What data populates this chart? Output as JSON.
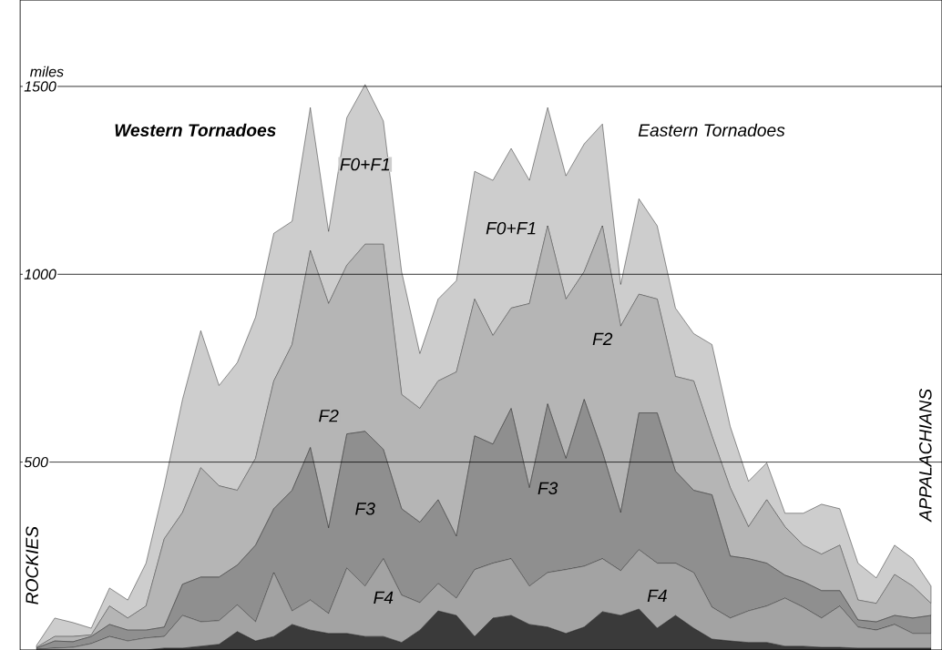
{
  "chart_data": {
    "type": "area",
    "stacked": true,
    "ylabel": "miles",
    "categories": [
      null,
      null,
      null,
      null,
      null,
      null,
      null,
      null,
      null,
      null,
      null,
      null,
      null,
      null,
      null,
      null,
      null,
      null,
      null,
      null,
      null,
      null,
      null,
      null,
      null,
      null,
      null,
      null,
      null,
      null,
      null,
      null,
      null,
      null,
      null,
      null,
      null,
      null,
      null,
      null,
      null,
      null,
      null,
      null,
      null,
      null,
      null,
      null,
      null,
      null
    ],
    "ylim": [
      0,
      1730
    ],
    "yticks": [
      500,
      1000,
      1500
    ],
    "grid": "y",
    "tick_labels": "y",
    "marker": "none",
    "line_style": "solid",
    "annotations": [
      "Western Tornadoes",
      "Eastern Tornadoes",
      "ROCKIES",
      "APPALACHIANS"
    ],
    "series": [
      {
        "color": "#3a3a3a",
        "values": [
          0,
          0,
          0,
          0,
          0,
          0,
          0,
          5,
          5,
          10,
          15,
          49,
          24,
          36,
          68,
          53,
          44,
          44,
          36,
          36,
          20,
          53,
          104,
          92,
          36,
          85,
          92,
          68,
          61,
          44,
          61,
          102,
          92,
          109,
          58,
          92,
          58,
          29,
          24,
          20,
          20,
          10,
          10,
          7,
          7,
          5,
          5,
          5,
          5,
          5
        ]
      },
      {
        "name": "F4",
        "color": "#a3a3a3",
        "values": [
          2,
          5,
          7,
          17,
          36,
          24,
          32,
          31,
          87,
          65,
          63,
          71,
          51,
          170,
          36,
          80,
          53,
          174,
          134,
          207,
          126,
          73,
          73,
          46,
          178,
          146,
          151,
          102,
          145,
          170,
          162,
          141,
          119,
          158,
          173,
          139,
          148,
          85,
          61,
          84,
          97,
          128,
          104,
          78,
          110,
          56,
          48,
          63,
          39,
          39
        ]
      },
      {
        "name": "F3",
        "color": "#8f8f8f",
        "values": [
          3,
          19,
          15,
          19,
          32,
          29,
          21,
          25,
          83,
          119,
          116,
          106,
          204,
          170,
          321,
          406,
          228,
          357,
          412,
          291,
          230,
          214,
          223,
          165,
          356,
          317,
          400,
          262,
          449,
          296,
          444,
          284,
          155,
          364,
          400,
          245,
          219,
          299,
          165,
          139,
          114,
          61,
          68,
          73,
          41,
          19,
          22,
          24,
          41,
          48
        ]
      },
      {
        "name": "F2",
        "color": "#b5b5b5",
        "values": [
          2,
          12,
          14,
          4,
          49,
          32,
          64,
          235,
          191,
          291,
          243,
          199,
          231,
          340,
          388,
          524,
          597,
          449,
          498,
          546,
          304,
          303,
          316,
          437,
          364,
          289,
          267,
          490,
          474,
          424,
          340,
          602,
          496,
          316,
          303,
          252,
          291,
          157,
          182,
          85,
          169,
          129,
          97,
          97,
          121,
          53,
          49,
          109,
          85,
          32
        ]
      },
      {
        "name": "F0+F1",
        "color": "#cdcdcd",
        "values": [
          5,
          49,
          37,
          18,
          48,
          48,
          114,
          141,
          301,
          365,
          267,
          340,
          376,
          393,
          328,
          381,
          192,
          393,
          425,
          328,
          327,
          146,
          218,
          243,
          340,
          413,
          425,
          328,
          315,
          328,
          340,
          271,
          111,
          254,
          195,
          182,
          126,
          243,
          163,
          121,
          98,
          36,
          85,
          133,
          97,
          98,
          68,
          78,
          73,
          46
        ]
      }
    ]
  }
}
